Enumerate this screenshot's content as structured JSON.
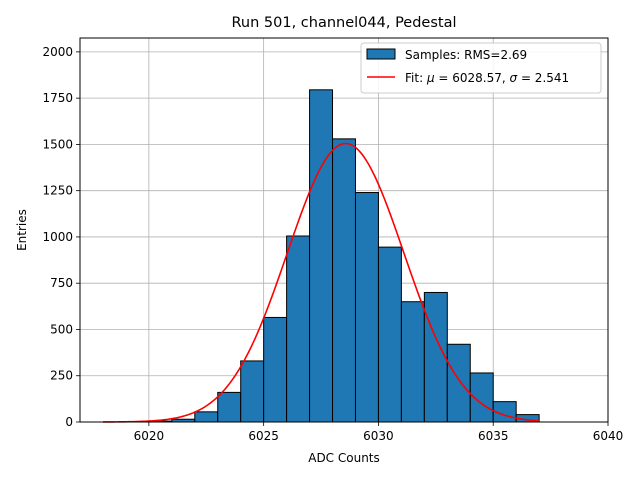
{
  "chart_data": {
    "type": "bar",
    "title": "Run 501, channel044, Pedestal",
    "xlabel": "ADC Counts",
    "ylabel": "Entries",
    "xlim": [
      6017,
      6040
    ],
    "ylim": [
      0,
      2075
    ],
    "xticks": [
      6020,
      6025,
      6030,
      6035,
      6040
    ],
    "yticks": [
      0,
      250,
      500,
      750,
      1000,
      1250,
      1500,
      1750,
      2000
    ],
    "grid": true,
    "legend_placement": "top-right",
    "bins": [
      {
        "x0": 6020,
        "x1": 6021,
        "value": 5
      },
      {
        "x0": 6021,
        "x1": 6022,
        "value": 15
      },
      {
        "x0": 6022,
        "x1": 6023,
        "value": 55
      },
      {
        "x0": 6023,
        "x1": 6024,
        "value": 160
      },
      {
        "x0": 6024,
        "x1": 6025,
        "value": 330
      },
      {
        "x0": 6025,
        "x1": 6026,
        "value": 565
      },
      {
        "x0": 6026,
        "x1": 6027,
        "value": 1005
      },
      {
        "x0": 6027,
        "x1": 6028,
        "value": 1795
      },
      {
        "x0": 6028,
        "x1": 6029,
        "value": 1530
      },
      {
        "x0": 6029,
        "x1": 6030,
        "value": 1240
      },
      {
        "x0": 6030,
        "x1": 6031,
        "value": 945
      },
      {
        "x0": 6031,
        "x1": 6032,
        "value": 650
      },
      {
        "x0": 6032,
        "x1": 6033,
        "value": 700
      },
      {
        "x0": 6033,
        "x1": 6034,
        "value": 420
      },
      {
        "x0": 6034,
        "x1": 6035,
        "value": 265
      },
      {
        "x0": 6035,
        "x1": 6036,
        "value": 110
      },
      {
        "x0": 6036,
        "x1": 6037,
        "value": 40
      }
    ],
    "fit": {
      "mu": 6028.57,
      "sigma": 2.541,
      "amplitude": 1505,
      "x_range": [
        6018,
        6037
      ]
    },
    "series": [
      {
        "name": "Samples: RMS=2.69",
        "kind": "histogram",
        "color": "#1f77b4",
        "edge_color": "#000000"
      },
      {
        "name_prefix": "Fit: ",
        "mu_symbol": "μ",
        "mu_text": " = 6028.57, ",
        "sigma_symbol": "σ",
        "sigma_text": " = 2.541",
        "kind": "line",
        "color": "#ff0000"
      }
    ]
  }
}
